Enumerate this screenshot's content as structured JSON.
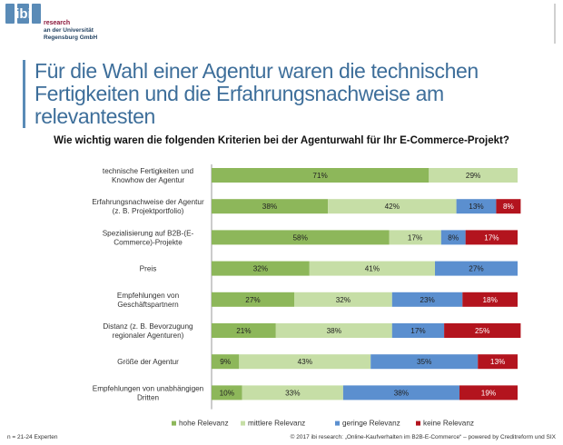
{
  "header": {
    "logo_text": "ibi",
    "org_line1": "research",
    "org_line2": "an der Universität",
    "org_line3": "Regensburg GmbH",
    "logo_color": "#5a8bb7"
  },
  "headline": "Für die Wahl einer Agentur waren die technischen Fertigkeiten und die Erfahrungsnachweise am relevantesten",
  "question": "Wie wichtig waren die folgenden Kriterien bei der Agenturwahl für Ihr E-Commerce-Projekt?",
  "footer": {
    "sample": "n = 21-24 Experten",
    "source": "© 2017 ibi research: „Online-Kaufverhalten im B2B-E-Commerce“ – powered by Creditreform und SIX"
  },
  "chart_data": {
    "type": "bar",
    "orientation": "horizontal",
    "stacked": true,
    "xlim": [
      0,
      100
    ],
    "unit": "%",
    "grid": false,
    "legend_position": "bottom",
    "categories": [
      [
        "technische Fertigkeiten und",
        "Knowhow der Agentur"
      ],
      [
        "Erfahrungsnachweise der Agentur",
        "(z. B. Projektportfolio)"
      ],
      [
        "Spezialisierung auf B2B-(E-",
        "Commerce)-Projekte"
      ],
      [
        "Preis"
      ],
      [
        "Empfehlungen von",
        "Geschäftspartnern"
      ],
      [
        "Distanz (z. B. Bevorzugung",
        "regionaler Agenturen)"
      ],
      [
        "Größe der Agentur"
      ],
      [
        "Empfehlungen von unabhängigen",
        "Dritten"
      ]
    ],
    "series": [
      {
        "name": "hohe Relevanz",
        "color": "#8db75a",
        "values": [
          71,
          38,
          58,
          32,
          27,
          21,
          9,
          10
        ]
      },
      {
        "name": "mittlere Relevanz",
        "color": "#c6dea6",
        "values": [
          29,
          42,
          17,
          41,
          32,
          38,
          43,
          33
        ]
      },
      {
        "name": "geringe Relevanz",
        "color": "#5b8fcf",
        "values": [
          0,
          13,
          8,
          27,
          23,
          17,
          35,
          38
        ]
      },
      {
        "name": "keine Relevanz",
        "color": "#b3141e",
        "values": [
          0,
          8,
          17,
          0,
          18,
          25,
          13,
          19
        ]
      }
    ]
  }
}
